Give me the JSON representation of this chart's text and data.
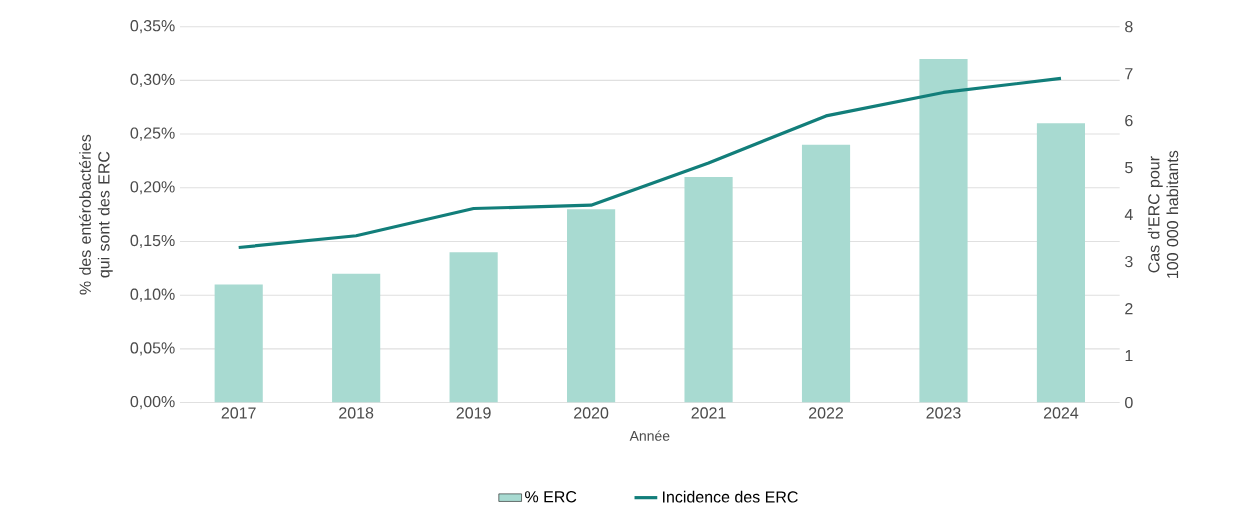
{
  "chart_data": {
    "type": "bar",
    "xlabel": "Année",
    "ylabel": "% des entérobactéries qui sont des ERC",
    "y2label": "Cas d’ERC pour 100 000 habitants",
    "categories": [
      "2017",
      "2018",
      "2019",
      "2020",
      "2021",
      "2022",
      "2023",
      "2024"
    ],
    "series": [
      {
        "name": "% ERC",
        "color": "#a8dad1",
        "values": [
          0.11,
          0.12,
          0.14,
          0.18,
          0.21,
          0.24,
          0.32,
          0.26
        ]
      },
      {
        "name": "Incidence des ERC",
        "type": "line",
        "axis": "y2",
        "color": "#127e7a",
        "values": [
          3.3,
          3.55,
          4.13,
          4.2,
          5.1,
          6.1,
          6.6,
          6.9
        ]
      }
    ],
    "ylim": [
      0,
      0.35
    ],
    "yticks": [
      {
        "value": 0,
        "label": "0,00%"
      },
      {
        "value": 0.05,
        "label": "0,05%"
      },
      {
        "value": 0.1,
        "label": "0,10%"
      },
      {
        "value": 0.15,
        "label": "0,15%"
      },
      {
        "value": 0.2,
        "label": "0,20%"
      },
      {
        "value": 0.25,
        "label": "0,25%"
      },
      {
        "value": 0.3,
        "label": "0,30%"
      },
      {
        "value": 0.35,
        "label": "0,35%"
      }
    ],
    "y2lim": [
      0,
      8
    ],
    "y2ticks": [
      0,
      1,
      2,
      3,
      4,
      5,
      6,
      7,
      8
    ],
    "grid": "y",
    "legend": "bottom",
    "marker": "none",
    "line_style": "solid"
  }
}
